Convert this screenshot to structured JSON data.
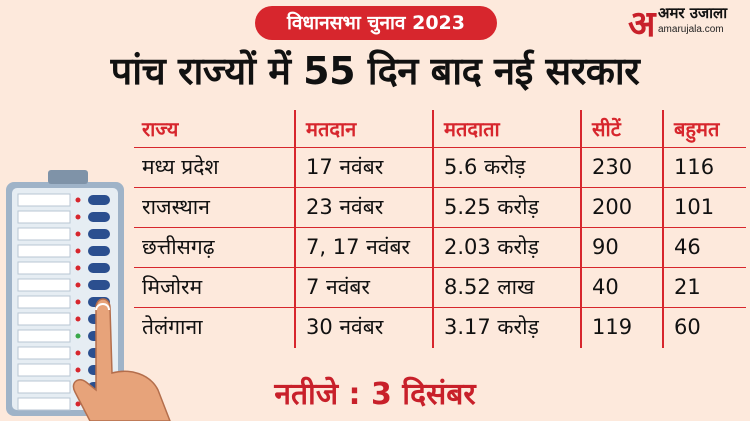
{
  "header": {
    "badge_text": "विधानसभा चुनाव 2023",
    "logo": {
      "mark": "अ",
      "name": "अमर उजाला",
      "url": "amarujala.com"
    },
    "headline": "पांच राज्यों में 55 दिन बाद नई सरकार"
  },
  "table": {
    "columns": [
      "राज्य",
      "मतदान",
      "मतदाता",
      "सीटें",
      "बहुमत"
    ],
    "rows": [
      [
        "मध्य प्रदेश",
        "17 नवंबर",
        "5.6 करोड़",
        "230",
        "116"
      ],
      [
        "राजस्थान",
        "23 नवंबर",
        "5.25 करोड़",
        "200",
        "101"
      ],
      [
        "छत्तीसगढ़",
        "7, 17 नवंबर",
        "2.03 करोड़",
        "90",
        "46"
      ],
      [
        "मिजोरम",
        "7 नवंबर",
        "8.52 लाख",
        "40",
        "21"
      ],
      [
        "तेलंगाना",
        "30 नवंबर",
        "3.17 करोड़",
        "119",
        "60"
      ]
    ]
  },
  "footer": {
    "result_text": "नतीजे : 3 दिसंबर"
  },
  "colors": {
    "accent": "#d7262d",
    "background": "#fde9dc"
  },
  "illustration": {
    "icon": "evm-machine-with-finger-icon"
  }
}
